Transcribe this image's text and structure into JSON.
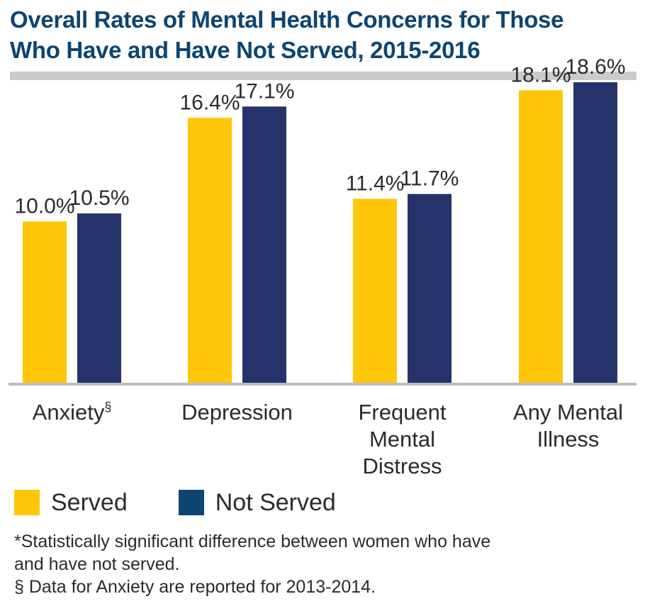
{
  "title_line1": "Overall Rates of Mental Health Concerns for Those",
  "title_line2": "Who Have and Have Not Served, 2015-2016",
  "colors": {
    "served": "#ffc60a",
    "not_served": "#26336b",
    "axis": "#bdbdbd",
    "rule": "#cbcbcb",
    "title": "#0d4471"
  },
  "legend": [
    {
      "label": "Served",
      "color": "#ffc60a"
    },
    {
      "label": "Not Served",
      "color": "#0d4471"
    }
  ],
  "notes": [
    "*Statistically significant difference between women who have",
    "and have not served.",
    "§ Data for Anxiety are reported for 2013-2014."
  ],
  "chart_data": {
    "type": "bar",
    "categories": [
      {
        "lines": [
          "Anxiety§"
        ]
      },
      {
        "lines": [
          "Depression"
        ]
      },
      {
        "lines": [
          "Frequent",
          "Mental",
          "Distress"
        ]
      },
      {
        "lines": [
          "Any Mental",
          "Illness"
        ]
      }
    ],
    "series": [
      {
        "name": "Served",
        "values": [
          10.0,
          16.4,
          11.4,
          18.1
        ],
        "labels": [
          "10.0%",
          "16.4%",
          "11.4%",
          "18.1%"
        ]
      },
      {
        "name": "Not Served",
        "values": [
          10.5,
          17.1,
          11.7,
          18.6
        ],
        "labels": [
          "10.5%",
          "17.1%",
          "11.7%",
          "18.6%"
        ]
      }
    ],
    "ylim": [
      0,
      20
    ],
    "grid": false,
    "legend_position": "bottom-left"
  }
}
